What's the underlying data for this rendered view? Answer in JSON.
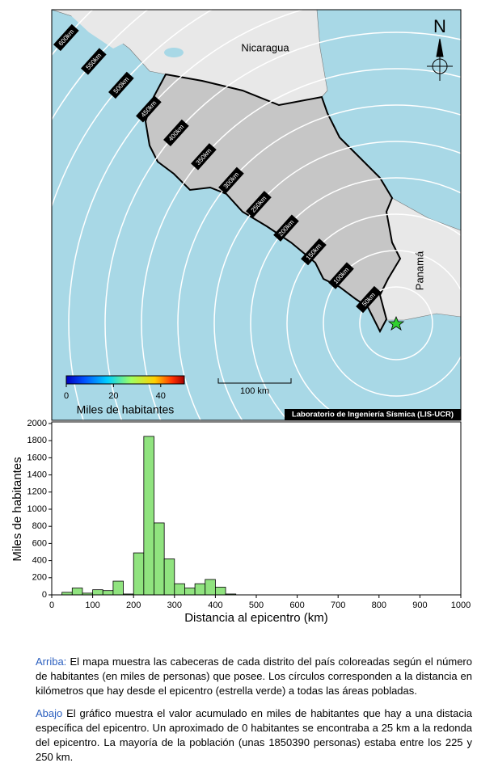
{
  "map": {
    "country_labels": [
      "Nicaragua",
      "Panamá"
    ],
    "distance_labels": [
      "600km",
      "550km",
      "500km",
      "450km",
      "400km",
      "350km",
      "300km",
      "250km",
      "200km",
      "150km",
      "100km",
      "50km"
    ],
    "north": "N",
    "colorbar": {
      "label": "Miles de habitantes",
      "lim": [
        0,
        50
      ],
      "ticks": [
        0,
        20,
        40
      ]
    },
    "scale_label": "100 km",
    "credit": "Laboratorio de Ingeniería Sísmica (LIS-UCR)"
  },
  "chart_data": {
    "type": "histogram",
    "xlabel": "Distancia al epicentro (km)",
    "ylabel": "Miles de habitantes",
    "bins": [
      0,
      25,
      50,
      75,
      100,
      125,
      150,
      175,
      200,
      225,
      250,
      275,
      300,
      325,
      350,
      375,
      400,
      425,
      450
    ],
    "values": [
      0,
      30,
      80,
      20,
      60,
      50,
      160,
      10,
      490,
      1850,
      840,
      420,
      130,
      80,
      130,
      180,
      90,
      10
    ],
    "color": "#90e37f",
    "xlim": [
      0,
      1000
    ],
    "xticks": [
      0,
      100,
      200,
      300,
      400,
      500,
      600,
      700,
      800,
      900,
      1000
    ],
    "ylim": [
      0,
      2000
    ],
    "yticks": [
      0,
      200,
      400,
      600,
      800,
      1000,
      1200,
      1400,
      1600,
      1800,
      2000
    ]
  },
  "caption": {
    "p1": {
      "lead": "Arriba:",
      "text": "El mapa muestra las cabeceras de cada distrito del país coloreadas según el número de habitantes (en miles de personas) que posee.  Los círculos corresponden a la distancia en kilómetros que hay desde el epicentro (estrella verde) a todas las áreas pobladas."
    },
    "p2": {
      "lead": "Abajo",
      "text": "El gráfico muestra el valor acumulado en miles de habitantes que hay a una distacia específica del epicentro.  Un aproximado de 0 habitantes se encontraba a 25 km a la redonda del epicentro.  La mayoría de la población (unas 1850390 personas) estaba entre los 225 y 250 km."
    }
  }
}
